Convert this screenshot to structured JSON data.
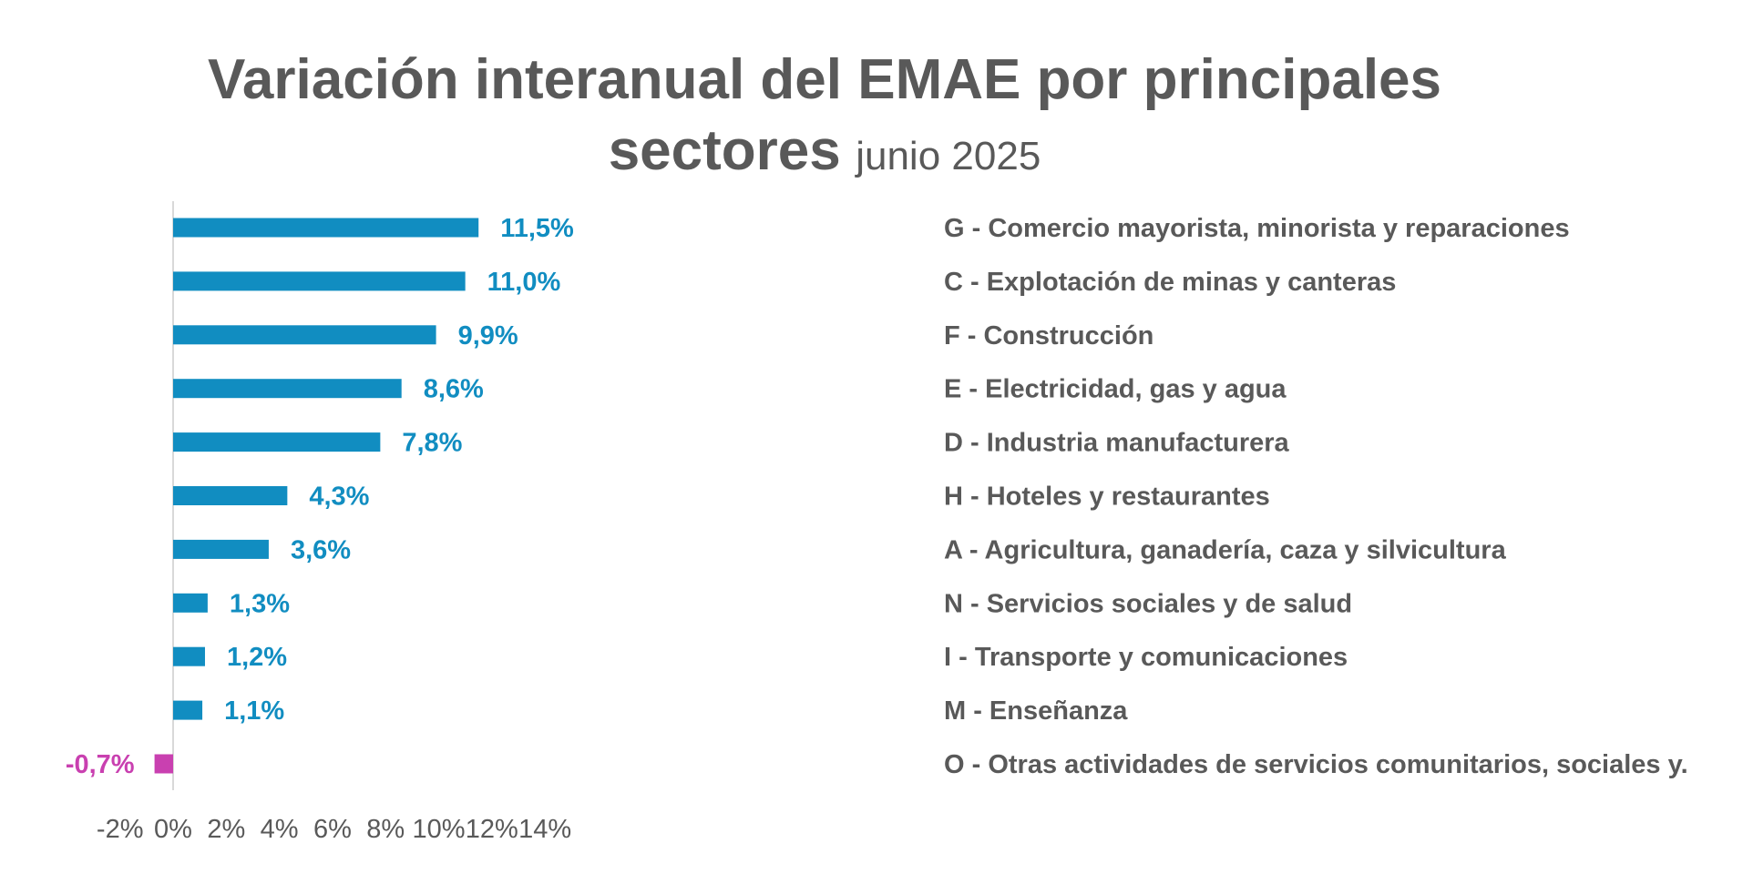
{
  "chart_data": {
    "type": "bar",
    "orientation": "horizontal",
    "title": "Variación interanual del EMAE por principales",
    "title_line2_bold": "sectores",
    "title_line2_regular": "junio 2025",
    "categories": [
      "G - Comercio mayorista, minorista y reparaciones",
      "C - Explotación de minas y canteras",
      "F - Construcción",
      "E - Electricidad, gas y agua",
      "D - Industria manufacturera",
      "H - Hoteles y restaurantes",
      "A -  Agricultura, ganadería, caza y silvicultura",
      "N - Servicios sociales y de salud",
      "I - Transporte y comunicaciones",
      "M - Enseñanza",
      "O - Otras actividades de servicios comunitarios, sociales y."
    ],
    "values": [
      11.5,
      11.0,
      9.9,
      8.6,
      7.8,
      4.3,
      3.6,
      1.3,
      1.2,
      1.1,
      -0.7
    ],
    "value_labels": [
      "11,5%",
      "11,0%",
      "9,9%",
      "8,6%",
      "7,8%",
      "4,3%",
      "3,6%",
      "1,3%",
      "1,2%",
      "1,1%",
      "-0,7%"
    ],
    "xlim": [
      -2,
      14
    ],
    "xticks": [
      -2,
      0,
      2,
      4,
      6,
      8,
      10,
      12,
      14
    ],
    "xtick_labels": [
      "-2%",
      "0%",
      "2%",
      "4%",
      "6%",
      "8%",
      "10%",
      "12%",
      "14%"
    ],
    "xlabel": "",
    "ylabel": "",
    "grid": false,
    "legend": "none",
    "colors": {
      "positive": "#118DC1",
      "negative": "#C940B0",
      "text": "#595959",
      "axis": "#D9D9D9"
    }
  }
}
